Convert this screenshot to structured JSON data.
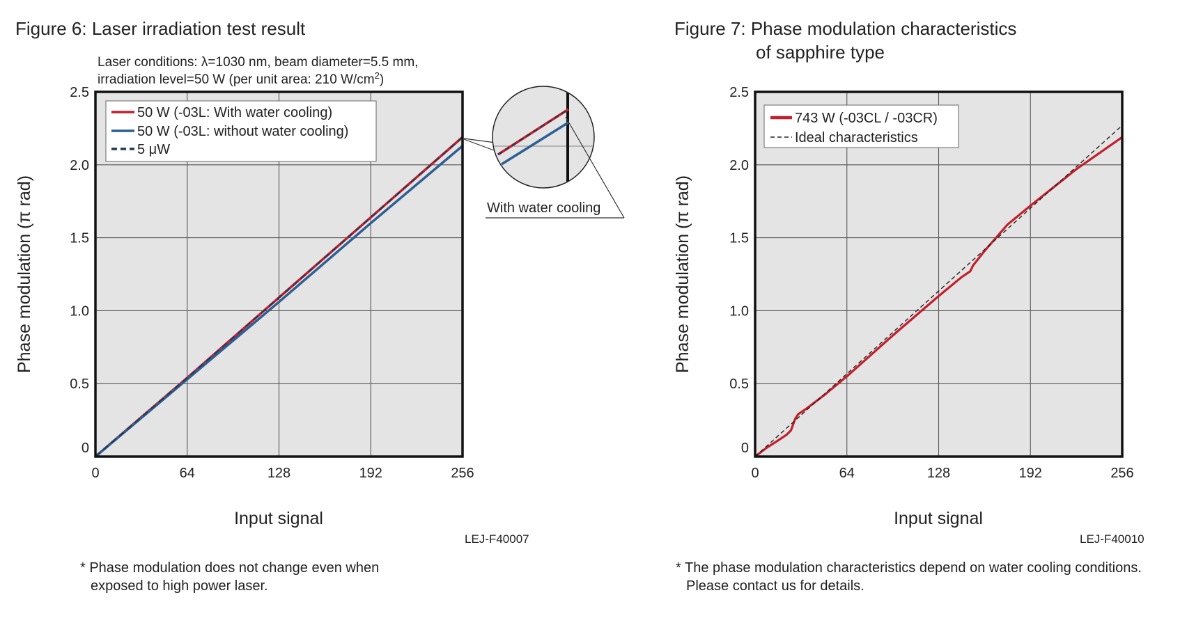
{
  "figure6": {
    "title": "Figure 6: Laser irradiation test result",
    "conditions_line1": "Laser conditions: λ=1030 nm, beam diameter=5.5 mm,",
    "conditions_line2_prefix": "irradiation level=50 W (per unit area: 210 W/cm",
    "conditions_line2_sup": "2",
    "conditions_line2_suffix": ")",
    "callout_label": "With water cooling",
    "code": "LEJ-F40007",
    "note_line1": "* Phase modulation does not change even when",
    "note_line2": "exposed to high power laser."
  },
  "figure7": {
    "title_line1": "Figure 7: Phase modulation characteristics",
    "title_line2": "of sapphire type",
    "code": "LEJ-F40010",
    "note_line1": "* The phase modulation characteristics depend on water cooling conditions.",
    "note_line2": "Please contact us for details."
  },
  "colors": {
    "red": "#c41e2a",
    "blue": "#2c5f93",
    "dark_dashed": "#1f3a5a",
    "plot_bg": "#e4e4e4"
  },
  "chart_data": [
    {
      "type": "line",
      "title": "Figure 6: Laser irradiation test result",
      "xlabel": "Input signal",
      "ylabel": "Phase modulation (π rad)",
      "xlim": [
        0,
        256
      ],
      "ylim": [
        0,
        2.5
      ],
      "xticks": [
        0,
        64,
        128,
        192,
        256
      ],
      "yticks": [
        0,
        0.5,
        1.0,
        1.5,
        2.0,
        2.5
      ],
      "ytick_labels": [
        "0",
        "0.5",
        "1.0",
        "1.5",
        "2.0",
        "2.5"
      ],
      "grid": true,
      "legend_position": "top-left",
      "series": [
        {
          "name": "50 W (-03L: With water cooling)",
          "color": "#c41e2a",
          "style": "solid",
          "x": [
            0,
            64,
            128,
            192,
            256
          ],
          "y": [
            0,
            0.54,
            1.09,
            1.64,
            2.19
          ]
        },
        {
          "name": "50 W (-03L: without water cooling)",
          "color": "#2c5f93",
          "style": "solid",
          "x": [
            0,
            64,
            128,
            192,
            256
          ],
          "y": [
            0,
            0.53,
            1.06,
            1.6,
            2.13
          ]
        },
        {
          "name": "5 μW",
          "color": "#1f3a5a",
          "style": "dashed",
          "x": [
            0,
            64,
            128,
            192,
            256
          ],
          "y": [
            0,
            0.54,
            1.09,
            1.64,
            2.19
          ]
        }
      ]
    },
    {
      "type": "line",
      "title": "Figure 7: Phase modulation characteristics of sapphire type",
      "xlabel": "Input signal",
      "ylabel": "Phase modulation (π rad)",
      "xlim": [
        0,
        256
      ],
      "ylim": [
        0,
        2.5
      ],
      "xticks": [
        0,
        64,
        128,
        192,
        256
      ],
      "yticks": [
        0,
        0.5,
        1.0,
        1.5,
        2.0,
        2.5
      ],
      "ytick_labels": [
        "0",
        "0.5",
        "1.0",
        "1.5",
        "2.0",
        "2.5"
      ],
      "grid": true,
      "legend_position": "top-left",
      "series": [
        {
          "name": "743 W (-03CL / -03CR)",
          "color": "#c41e2a",
          "style": "solid",
          "x": [
            0,
            8,
            16,
            22,
            25,
            28,
            30,
            36,
            48,
            64,
            96,
            128,
            144,
            150,
            152,
            160,
            176,
            192,
            224,
            256
          ],
          "y": [
            0,
            0.06,
            0.11,
            0.15,
            0.18,
            0.26,
            0.29,
            0.33,
            0.42,
            0.55,
            0.83,
            1.1,
            1.23,
            1.27,
            1.31,
            1.41,
            1.59,
            1.72,
            1.97,
            2.19
          ]
        },
        {
          "name": "Ideal characteristics",
          "color": "#222222",
          "style": "dashed",
          "x": [
            0,
            256
          ],
          "y": [
            0,
            2.27
          ]
        }
      ]
    }
  ]
}
